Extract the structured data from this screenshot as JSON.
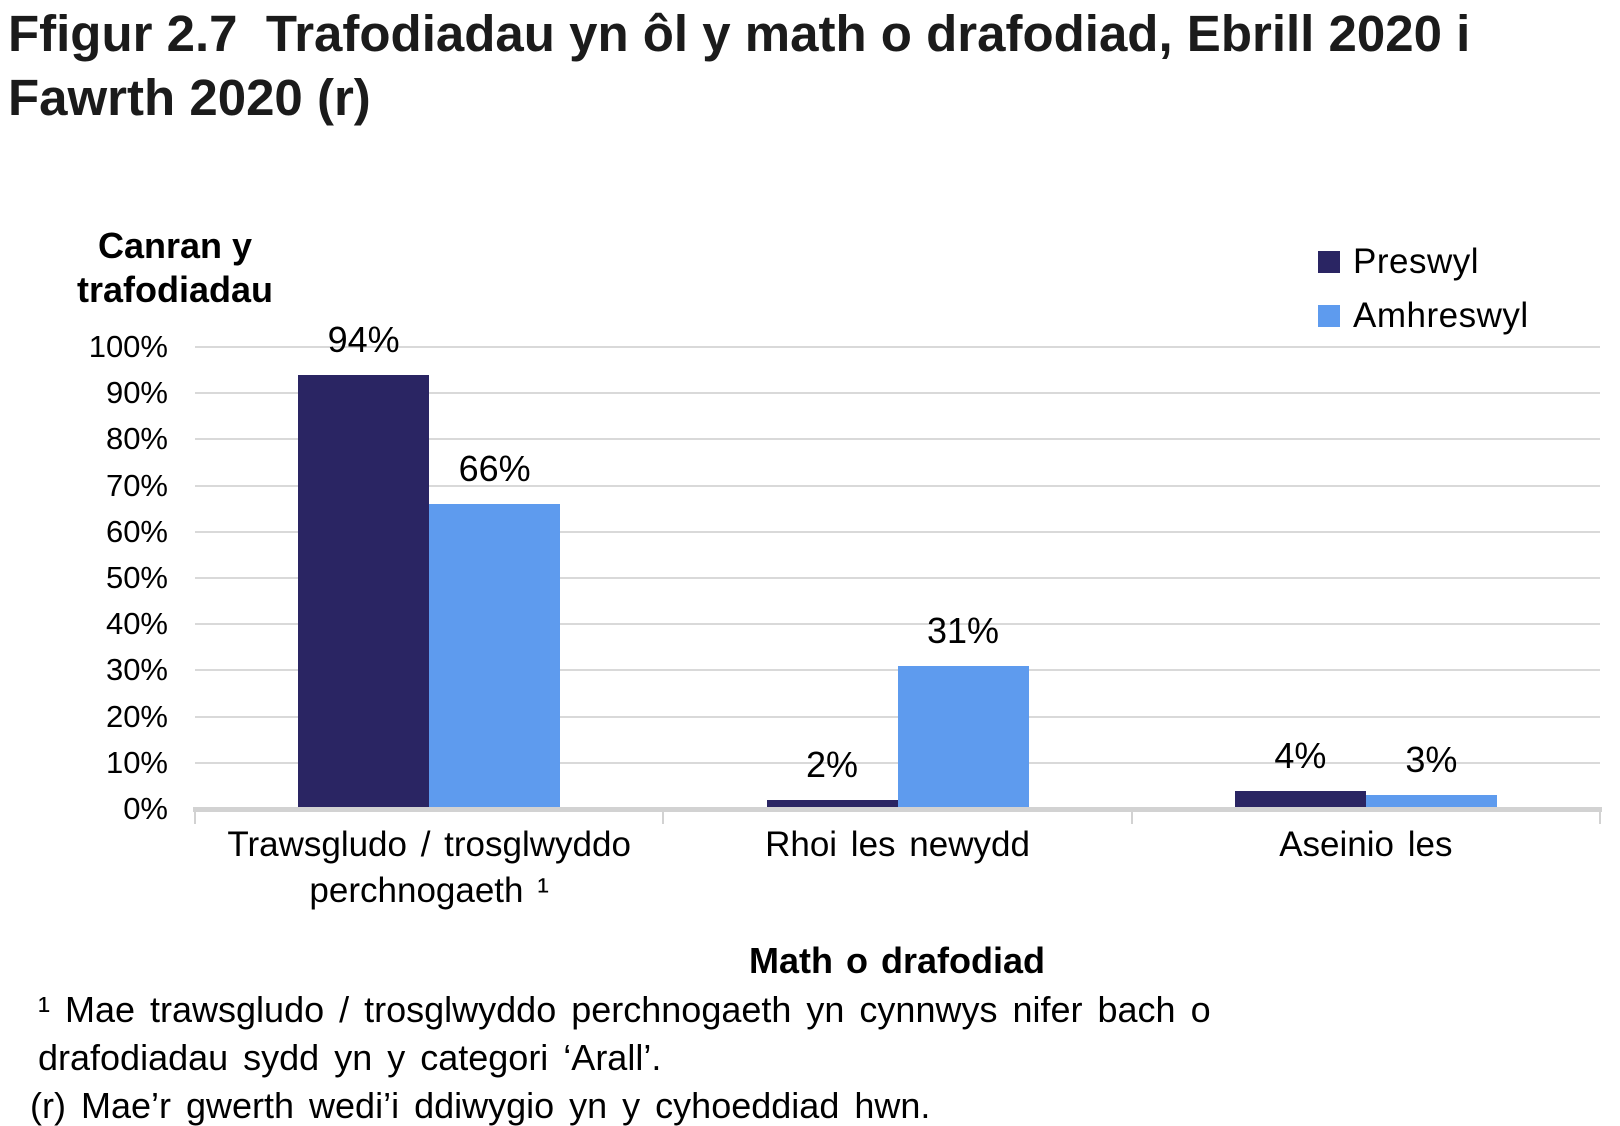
{
  "figure": {
    "title": "Ffigur 2.7  Trafodiadau yn ôl y math o drafodiad, Ebrill 2020 i Fawrth 2020 (r)"
  },
  "chart_data": {
    "type": "bar",
    "categories": [
      "Trawsgludo / trosglwyddo perchnogaeth ¹",
      "Rhoi les newydd",
      "Aseinio les"
    ],
    "series": [
      {
        "name": "Preswyl",
        "color": "#2A2563",
        "values": [
          94,
          2,
          4
        ]
      },
      {
        "name": "Amhreswyl",
        "color": "#5E9BEE",
        "values": [
          66,
          31,
          3
        ]
      }
    ],
    "value_label_suffix": "%",
    "ylabel": "Canran y trafodiadau",
    "xlabel": "Math o drafodiad",
    "ylim": [
      0,
      100
    ],
    "ytick_step": 10,
    "ytick_suffix": "%",
    "grid": true,
    "legend_position": "top-right",
    "gridline_color": "#D9D9D9",
    "axis_color": "#D2D2D2"
  },
  "footnotes": [
    "¹ Mae trawsgludo / trosglwyddo perchnogaeth yn cynnwys nifer bach o drafodiadau sydd yn y categori ‘Arall’.",
    "(r) Mae’r gwerth wedi’i ddiwygio yn y cyhoeddiad hwn."
  ]
}
